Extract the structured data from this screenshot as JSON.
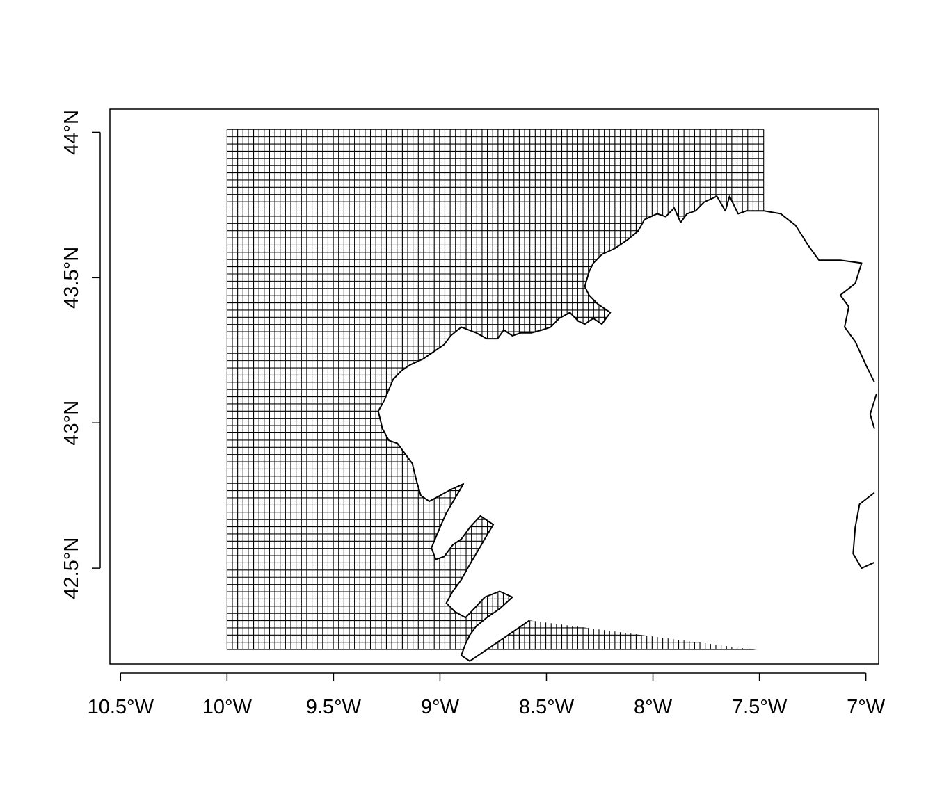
{
  "map": {
    "x_ticks": [
      {
        "label": "10.5°W",
        "lon": -10.5
      },
      {
        "label": "10°W",
        "lon": -10.0
      },
      {
        "label": "9.5°W",
        "lon": -9.5
      },
      {
        "label": "9°W",
        "lon": -9.0
      },
      {
        "label": "8.5°W",
        "lon": -8.5
      },
      {
        "label": "8°W",
        "lon": -8.0
      },
      {
        "label": "7.5°W",
        "lon": -7.5
      },
      {
        "label": "7°W",
        "lon": -7.0
      }
    ],
    "y_ticks": [
      {
        "label": "42.5°N",
        "lat": 42.5
      },
      {
        "label": "43°N",
        "lat": 43.0
      },
      {
        "label": "43.5°N",
        "lat": 43.5
      },
      {
        "label": "44°N",
        "lat": 44.0
      }
    ],
    "xlim": [
      -10.55,
      -6.94
    ],
    "ylim": [
      42.17,
      44.08
    ],
    "grid": {
      "lon_min": -10.0,
      "lon_max": -7.48,
      "lat_min": 42.22,
      "lat_max": 44.01,
      "cell_deg": 0.025
    },
    "coastline": [
      [
        -7.48,
        43.73
      ],
      [
        -7.56,
        43.73
      ],
      [
        -7.6,
        43.72
      ],
      [
        -7.64,
        43.78
      ],
      [
        -7.66,
        43.73
      ],
      [
        -7.7,
        43.78
      ],
      [
        -7.76,
        43.76
      ],
      [
        -7.8,
        43.73
      ],
      [
        -7.84,
        43.72
      ],
      [
        -7.87,
        43.69
      ],
      [
        -7.9,
        43.74
      ],
      [
        -7.94,
        43.71
      ],
      [
        -7.98,
        43.72
      ],
      [
        -8.04,
        43.7
      ],
      [
        -8.07,
        43.66
      ],
      [
        -8.12,
        43.63
      ],
      [
        -8.18,
        43.6
      ],
      [
        -8.24,
        43.58
      ],
      [
        -8.28,
        43.55
      ],
      [
        -8.3,
        43.52
      ],
      [
        -8.32,
        43.47
      ],
      [
        -8.3,
        43.44
      ],
      [
        -8.26,
        43.41
      ],
      [
        -8.2,
        43.38
      ],
      [
        -8.24,
        43.34
      ],
      [
        -8.28,
        43.36
      ],
      [
        -8.32,
        43.34
      ],
      [
        -8.35,
        43.35
      ],
      [
        -8.39,
        43.38
      ],
      [
        -8.44,
        43.36
      ],
      [
        -8.48,
        43.33
      ],
      [
        -8.52,
        43.32
      ],
      [
        -8.57,
        43.31
      ],
      [
        -8.62,
        43.31
      ],
      [
        -8.66,
        43.3
      ],
      [
        -8.7,
        43.32
      ],
      [
        -8.73,
        43.29
      ],
      [
        -8.78,
        43.29
      ],
      [
        -8.83,
        43.31
      ],
      [
        -8.9,
        43.33
      ],
      [
        -8.95,
        43.3
      ],
      [
        -8.98,
        43.27
      ],
      [
        -9.04,
        43.24
      ],
      [
        -9.08,
        43.22
      ],
      [
        -9.14,
        43.2
      ],
      [
        -9.18,
        43.18
      ],
      [
        -9.22,
        43.15
      ],
      [
        -9.26,
        43.08
      ],
      [
        -9.29,
        43.04
      ],
      [
        -9.27,
        42.98
      ],
      [
        -9.24,
        42.94
      ],
      [
        -9.2,
        42.93
      ],
      [
        -9.17,
        42.9
      ],
      [
        -9.13,
        42.86
      ],
      [
        -9.11,
        42.8
      ],
      [
        -9.09,
        42.75
      ],
      [
        -9.05,
        42.73
      ],
      [
        -9.0,
        42.75
      ],
      [
        -8.95,
        42.77
      ],
      [
        -8.89,
        42.79
      ],
      [
        -8.93,
        42.74
      ],
      [
        -8.97,
        42.69
      ],
      [
        -9.0,
        42.64
      ],
      [
        -9.04,
        42.57
      ],
      [
        -9.02,
        42.53
      ],
      [
        -8.98,
        42.54
      ],
      [
        -8.94,
        42.58
      ],
      [
        -8.9,
        42.6
      ],
      [
        -8.86,
        42.64
      ],
      [
        -8.81,
        42.68
      ],
      [
        -8.75,
        42.65
      ],
      [
        -8.79,
        42.6
      ],
      [
        -8.83,
        42.55
      ],
      [
        -8.87,
        42.5
      ],
      [
        -8.9,
        42.46
      ],
      [
        -8.94,
        42.42
      ],
      [
        -8.97,
        42.38
      ],
      [
        -8.93,
        42.35
      ],
      [
        -8.88,
        42.33
      ],
      [
        -8.84,
        42.36
      ],
      [
        -8.79,
        42.4
      ],
      [
        -8.72,
        42.42
      ],
      [
        -8.66,
        42.4
      ],
      [
        -8.72,
        42.36
      ],
      [
        -8.78,
        42.33
      ],
      [
        -8.83,
        42.3
      ],
      [
        -8.86,
        42.27
      ],
      [
        -8.88,
        42.24
      ],
      [
        -8.9,
        42.2
      ],
      [
        -8.86,
        42.18
      ],
      [
        -8.8,
        42.21
      ],
      [
        -8.72,
        42.25
      ],
      [
        -8.64,
        42.29
      ],
      [
        -8.58,
        42.32
      ]
    ],
    "coastline_east": [
      [
        -7.48,
        43.73
      ],
      [
        -7.4,
        43.72
      ],
      [
        -7.33,
        43.68
      ],
      [
        -7.27,
        43.61
      ],
      [
        -7.22,
        43.56
      ],
      [
        -7.12,
        43.56
      ],
      [
        -7.02,
        43.55
      ],
      [
        -7.05,
        43.48
      ],
      [
        -7.12,
        43.44
      ],
      [
        -7.08,
        43.4
      ],
      [
        -7.1,
        43.33
      ],
      [
        -7.05,
        43.28
      ],
      [
        -7.0,
        43.2
      ],
      [
        -6.96,
        43.14
      ]
    ],
    "coastline_se": [
      [
        -6.95,
        43.1
      ],
      [
        -6.98,
        43.03
      ],
      [
        -6.96,
        42.98
      ]
    ],
    "coastline_south": [
      [
        -6.96,
        42.76
      ],
      [
        -7.03,
        42.72
      ],
      [
        -7.05,
        42.64
      ],
      [
        -7.06,
        42.55
      ],
      [
        -7.02,
        42.5
      ],
      [
        -6.96,
        42.52
      ]
    ]
  }
}
